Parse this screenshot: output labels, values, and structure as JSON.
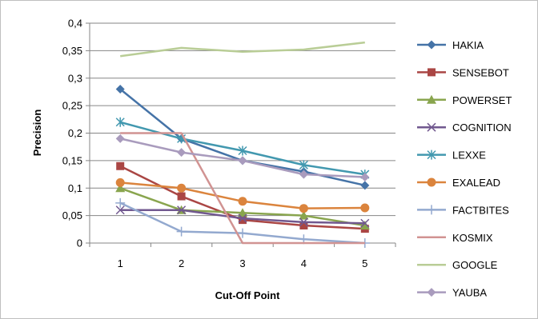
{
  "chart_data": {
    "type": "line",
    "title": "",
    "xlabel": "Cut-Off Point",
    "ylabel": "Precision",
    "categories": [
      "1",
      "2",
      "3",
      "4",
      "5"
    ],
    "ylim": [
      0,
      0.4
    ],
    "yticks": [
      "0",
      "0,05",
      "0,1",
      "0,15",
      "0,2",
      "0,25",
      "0,3",
      "0,35",
      "0,4"
    ],
    "grid": "horizontal",
    "legend": "right",
    "series": [
      {
        "name": "HAKIA",
        "color": "#4573a7",
        "marker": "diamond",
        "values": [
          0.28,
          0.19,
          0.15,
          0.13,
          0.105
        ]
      },
      {
        "name": "SENSEBOT",
        "color": "#aa4644",
        "marker": "square",
        "values": [
          0.14,
          0.085,
          0.042,
          0.032,
          0.026
        ]
      },
      {
        "name": "POWERSET",
        "color": "#89a54e",
        "marker": "triangle",
        "values": [
          0.1,
          0.06,
          0.055,
          0.05,
          0.032
        ]
      },
      {
        "name": "COGNITION",
        "color": "#71588f",
        "marker": "x",
        "values": [
          0.06,
          0.06,
          0.045,
          0.038,
          0.036
        ]
      },
      {
        "name": "LEXXE",
        "color": "#4298af",
        "marker": "star",
        "values": [
          0.22,
          0.19,
          0.168,
          0.142,
          0.125
        ]
      },
      {
        "name": "EXALEAD",
        "color": "#db843d",
        "marker": "circle",
        "values": [
          0.11,
          0.1,
          0.076,
          0.063,
          0.064
        ]
      },
      {
        "name": "FACTBITES",
        "color": "#93a9cf",
        "marker": "plus",
        "values": [
          0.073,
          0.021,
          0.018,
          0.007,
          0.0
        ]
      },
      {
        "name": "KOSMIX",
        "color": "#d19392",
        "marker": "none",
        "values": [
          0.2,
          0.2,
          0.0,
          0.0,
          0.0
        ]
      },
      {
        "name": "GOOGLE",
        "color": "#b9cd96",
        "marker": "none",
        "values": [
          0.34,
          0.355,
          0.348,
          0.352,
          0.365
        ]
      },
      {
        "name": "YAUBA",
        "color": "#a99bbd",
        "marker": "diamond",
        "values": [
          0.19,
          0.165,
          0.15,
          0.125,
          0.12
        ]
      }
    ]
  }
}
